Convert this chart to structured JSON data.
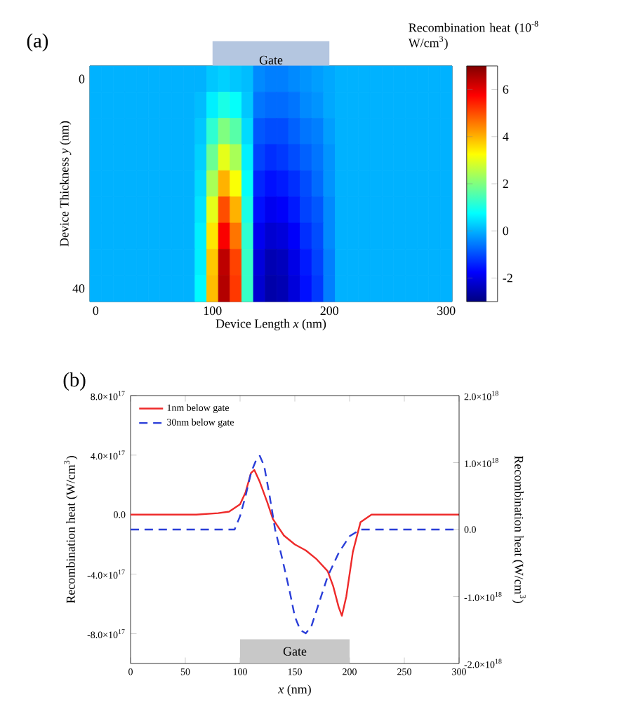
{
  "chart_data": [
    {
      "type": "heatmap",
      "title": "(a)",
      "xlabel": "Device Length *x* (nm)",
      "ylabel": "Device Thickness *y* (nm)",
      "clabel": "Recombination heat (10$^{-8}$ W/cm$^{3}$)",
      "categories": [
        "0",
        null,
        null,
        null,
        null,
        null,
        null,
        null,
        null,
        null,
        "100",
        null,
        null,
        null,
        null,
        null,
        null,
        null,
        null,
        null,
        "200",
        null,
        null,
        null,
        null,
        null,
        null,
        null,
        null,
        null,
        "300"
      ],
      "y_categories": [
        "0",
        null,
        null,
        null,
        null,
        null,
        null,
        null,
        "40"
      ],
      "cells": [
        [
          0,
          0,
          0,
          0,
          0,
          0,
          0,
          0,
          0,
          0.0,
          0.2,
          0.3,
          0.2,
          0.1,
          -0.4,
          -0.5,
          -0.5,
          -0.4,
          -0.3,
          -0.2,
          -0.1,
          0,
          0,
          0,
          0,
          0,
          0,
          0,
          0,
          0,
          0
        ],
        [
          0,
          0,
          0,
          0,
          0,
          0,
          0,
          0,
          0,
          0.1,
          0.6,
          1.0,
          0.8,
          0.2,
          -0.6,
          -0.7,
          -0.7,
          -0.6,
          -0.4,
          -0.3,
          -0.1,
          0,
          0,
          0,
          0,
          0,
          0,
          0,
          0,
          0,
          0
        ],
        [
          0,
          0,
          0,
          0,
          0,
          0,
          0,
          0,
          0,
          0.2,
          1.2,
          2.0,
          1.6,
          0.4,
          -0.9,
          -1.0,
          -1.0,
          -0.8,
          -0.6,
          -0.5,
          -0.2,
          0,
          0,
          0,
          0,
          0,
          0,
          0,
          0,
          0,
          0
        ],
        [
          0,
          0,
          0,
          0,
          0,
          0,
          0,
          0,
          0,
          0.3,
          1.8,
          3.0,
          2.4,
          0.6,
          -1.1,
          -1.3,
          -1.2,
          -1.0,
          -0.8,
          -0.6,
          -0.3,
          0,
          0,
          0,
          0,
          0,
          0,
          0,
          0,
          0,
          0
        ],
        [
          0,
          0,
          0,
          0,
          0,
          0,
          0,
          0,
          0,
          0.4,
          2.4,
          4.0,
          3.2,
          0.8,
          -1.4,
          -1.6,
          -1.5,
          -1.3,
          -1.0,
          -0.7,
          -0.3,
          0,
          0,
          0,
          0,
          0,
          0,
          0,
          0,
          0,
          0
        ],
        [
          0,
          0,
          0,
          0,
          0,
          0,
          0,
          0,
          0,
          0.5,
          3.0,
          5.0,
          4.0,
          1.0,
          -1.6,
          -1.9,
          -1.8,
          -1.5,
          -1.1,
          -0.9,
          -0.4,
          0,
          0,
          0,
          0,
          0,
          0,
          0,
          0,
          0,
          0
        ],
        [
          0,
          0,
          0,
          0,
          0,
          0,
          0,
          0,
          0,
          0.6,
          3.5,
          5.8,
          4.6,
          1.2,
          -1.9,
          -2.2,
          -2.1,
          -1.8,
          -1.3,
          -1.0,
          -0.4,
          0,
          0,
          0,
          0,
          0,
          0,
          0,
          0,
          0,
          0
        ],
        [
          0,
          0,
          0,
          0,
          0,
          0,
          0,
          0,
          0,
          0.6,
          3.8,
          6.4,
          5.1,
          1.3,
          -2.1,
          -2.5,
          -2.4,
          -2.0,
          -1.5,
          -1.1,
          -0.5,
          0,
          0,
          0,
          0,
          0,
          0,
          0,
          0,
          0,
          0
        ],
        [
          0,
          0,
          0,
          0,
          0,
          0,
          0,
          0,
          0,
          0.7,
          3.9,
          6.5,
          5.2,
          1.3,
          -2.2,
          -2.6,
          -2.5,
          -2.1,
          -1.6,
          -1.2,
          -0.5,
          0,
          0,
          0,
          0,
          0,
          0,
          0,
          0,
          0,
          0
        ]
      ],
      "clim": [
        -3,
        7
      ],
      "cticks": [
        -2,
        0,
        2,
        4,
        6
      ],
      "bands": [
        {
          "axis": "x",
          "from": "100",
          "to": "200",
          "label": "Gate",
          "color": "#b4c6e0"
        }
      ]
    },
    {
      "type": "line",
      "title": "(b)",
      "xlabel": "*x* (nm)",
      "ylabel": "Recombination heat (W/cm$^{3}$)",
      "y2label": "Recombination heat (W/cm$^{3}$)",
      "legend": "top left",
      "marker": "none",
      "xlim": [
        0,
        300
      ],
      "xticks": [
        0,
        50,
        100,
        150,
        200,
        250,
        300
      ],
      "ylim": [
        -1e+18,
        8e+17
      ],
      "yticks": [
        {
          "value": 8e+17,
          "label": "8.0×10$^{17}$"
        },
        {
          "value": 4e+17,
          "label": "4.0×10$^{17}$"
        },
        {
          "value": 0,
          "label": "0.0"
        },
        {
          "value": -4e+17,
          "label": "-4.0×10$^{17}$"
        },
        {
          "value": -8e+17,
          "label": "-8.0×10$^{17}$"
        }
      ],
      "y2lim": [
        -2e+18,
        2e+18
      ],
      "y2ticks": [
        {
          "value": 2e+18,
          "label": "2.0×10$^{18}$"
        },
        {
          "value": 1e+18,
          "label": "1.0×10$^{18}$"
        },
        {
          "value": 0,
          "label": "0.0"
        },
        {
          "value": -1e+18,
          "label": "-1.0×10$^{18}$"
        },
        {
          "value": -2e+18,
          "label": "-2.0×10$^{18}$"
        }
      ],
      "bands": [
        {
          "axis": "x",
          "from": 100,
          "to": 200,
          "label": "Gate",
          "color": "#c8c8c8"
        }
      ],
      "series": [
        {
          "name": "1nm below gate",
          "color": "#ee2a2a",
          "line_style": "solid",
          "x": [
            0,
            20,
            40,
            60,
            80,
            90,
            100,
            105,
            110,
            113,
            118,
            125,
            130,
            140,
            150,
            160,
            170,
            180,
            185,
            190,
            193,
            197,
            203,
            210,
            220,
            240,
            270,
            300
          ],
          "values": [
            0,
            0,
            0,
            0,
            1e+16,
            2e+16,
            7e+16,
            1.5e+17,
            2.8e+17,
            3e+17,
            2.2e+17,
            8e+16,
            -3e+16,
            -1.4e+17,
            -2e+17,
            -2.4e+17,
            -3e+17,
            -3.8e+17,
            -4.8e+17,
            -6.2e+17,
            -6.8e+17,
            -5.5e+17,
            -2.5e+17,
            -5e+16,
            0,
            0,
            0,
            0
          ]
        },
        {
          "name": "30nm below gate",
          "color": "#2a3ed8",
          "line_style": "dashed",
          "axis": "y2",
          "x": [
            0,
            50,
            90,
            95,
            100,
            105,
            110,
            115,
            118,
            122,
            127,
            132,
            138,
            145,
            150,
            155,
            160,
            165,
            170,
            175,
            180,
            190,
            200,
            210,
            220,
            250,
            300
          ],
          "values": [
            0,
            0,
            0,
            0,
            2e+17,
            5e+17,
            8.5e+17,
            1.05e+18,
            1.1e+18,
            9.5e+17,
            5e+17,
            0,
            -4e+17,
            -9e+17,
            -1.3e+18,
            -1.5e+18,
            -1.55e+18,
            -1.45e+18,
            -1.2e+18,
            -9.5e+17,
            -7e+17,
            -3.5e+17,
            -1e+17,
            0,
            0,
            0,
            0
          ]
        }
      ]
    }
  ]
}
